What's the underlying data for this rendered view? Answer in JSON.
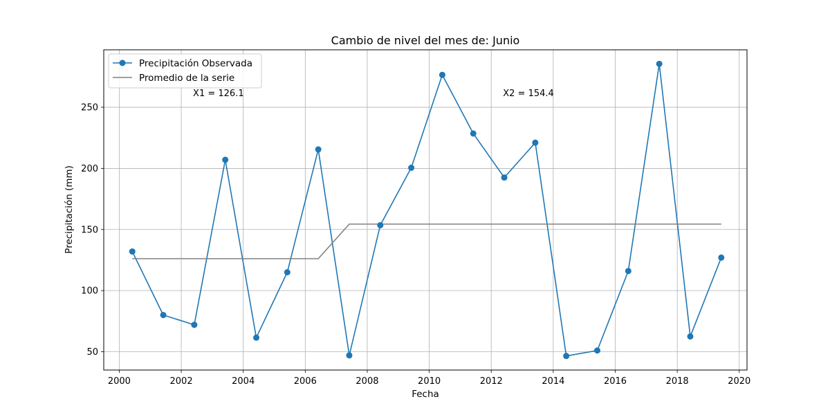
{
  "chart_data": {
    "type": "line",
    "title": "Cambio de nivel del mes de: Junio",
    "xlabel": "Fecha",
    "ylabel": "Precipitación (mm)",
    "xlim": [
      1999.5,
      2020.25
    ],
    "ylim": [
      35,
      297
    ],
    "xticks": [
      2000,
      2002,
      2004,
      2006,
      2008,
      2010,
      2012,
      2014,
      2016,
      2018,
      2020
    ],
    "xtick_labels": [
      "2000",
      "2002",
      "2004",
      "2006",
      "2008",
      "2010",
      "2012",
      "2014",
      "2016",
      "2018",
      "2020"
    ],
    "yticks": [
      50,
      100,
      150,
      200,
      250
    ],
    "ytick_labels": [
      "50",
      "100",
      "150",
      "200",
      "250"
    ],
    "grid": true,
    "legend_position": "top-left",
    "series": [
      {
        "name": "Precipitación Observada",
        "color": "#1f77b4",
        "marker": "circle",
        "x": [
          2000.42,
          2001.42,
          2002.42,
          2003.42,
          2004.42,
          2005.42,
          2006.42,
          2007.42,
          2008.42,
          2009.42,
          2010.42,
          2011.42,
          2012.42,
          2013.42,
          2014.42,
          2015.42,
          2016.42,
          2017.42,
          2018.42,
          2019.42
        ],
        "y": [
          132,
          80,
          72,
          207,
          61.5,
          115,
          215.5,
          47,
          153.5,
          200.5,
          276.5,
          228.5,
          192.5,
          221,
          46.5,
          51,
          116,
          285.5,
          62.5,
          127
        ]
      },
      {
        "name": "Promedio de la serie",
        "color": "#808080",
        "marker": "none",
        "x": [
          2000.42,
          2001.42,
          2002.42,
          2003.42,
          2004.42,
          2005.42,
          2006.42,
          2007.42,
          2008.42,
          2009.42,
          2010.42,
          2011.42,
          2012.42,
          2013.42,
          2014.42,
          2015.42,
          2016.42,
          2017.42,
          2018.42,
          2019.42
        ],
        "y": [
          126.1,
          126.1,
          126.1,
          126.1,
          126.1,
          126.1,
          126.1,
          154.4,
          154.4,
          154.4,
          154.4,
          154.4,
          154.4,
          154.4,
          154.4,
          154.4,
          154.4,
          154.4,
          154.4,
          154.4
        ]
      }
    ],
    "annotations": [
      {
        "text": "X1 = 126.1",
        "x": 2003.2,
        "y": 259
      },
      {
        "text": "X2 = 154.4",
        "x": 2013.2,
        "y": 259
      }
    ]
  }
}
